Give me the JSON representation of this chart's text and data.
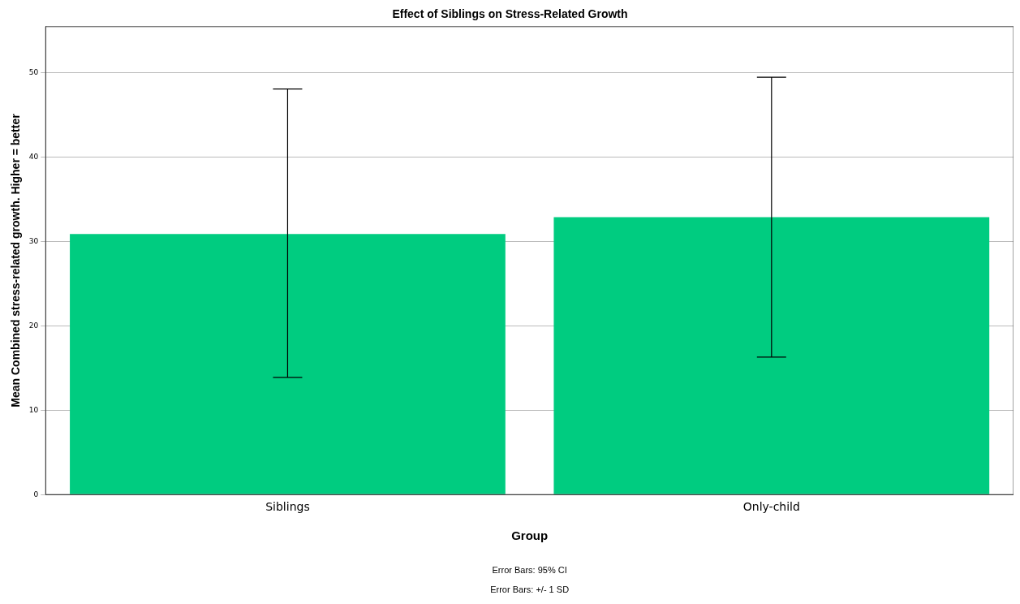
{
  "chart_data": {
    "type": "bar",
    "title": "Effect of Siblings on Stress-Related Growth",
    "xlabel": "Group",
    "ylabel": "Mean Combined stress-related growth. Higher = better",
    "categories": [
      "Siblings",
      "Only-child"
    ],
    "values": [
      30.9,
      32.9
    ],
    "errors": [
      [
        13.9,
        48.1
      ],
      [
        16.3,
        49.5
      ]
    ],
    "color": "#00cc80",
    "ylim": [
      0,
      55.5
    ],
    "yticks": [
      0,
      10,
      20,
      30,
      40,
      50
    ],
    "grid": "y",
    "legend": false,
    "annotations": [
      "Error Bars: 95% CI",
      "Error Bars: +/- 1 SD"
    ]
  }
}
